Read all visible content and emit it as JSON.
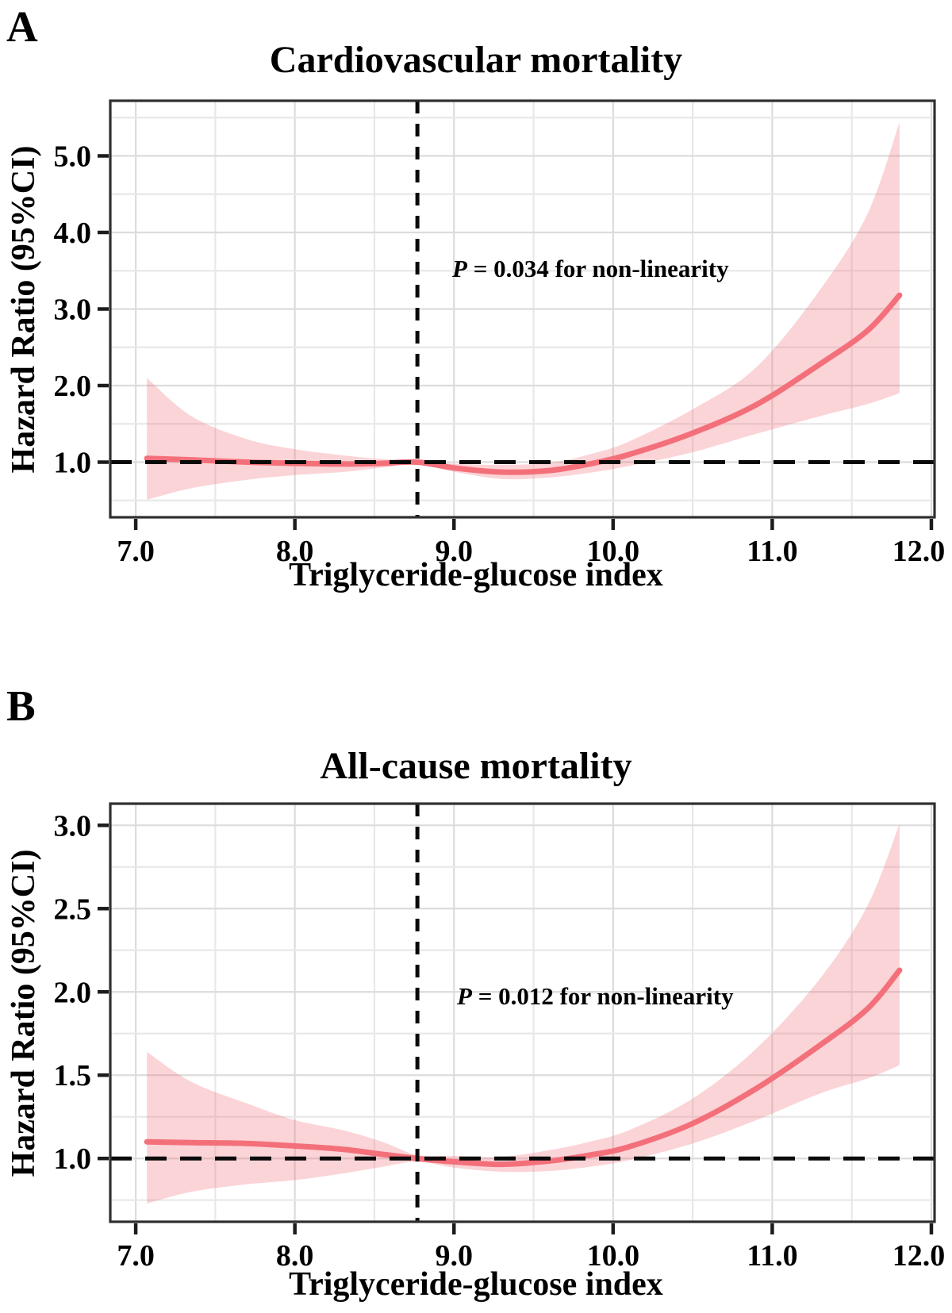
{
  "figure": {
    "background": "#ffffff",
    "line_color": "#f3707b",
    "ribbon_color": "rgba(243,112,123,0.30)",
    "reference_dash_color": "#0a0a0a",
    "grid_major_color": "#dcdcdc",
    "grid_minor_color": "#e8e8e8",
    "border_color": "#2f2f2f"
  },
  "panels": [
    {
      "letter": "A"
    },
    {
      "letter": "B"
    }
  ],
  "chart_data": [
    {
      "type": "line",
      "panel_letter": "A",
      "title": "Cardiovascular mortality",
      "xlabel": "Triglyceride-glucose index",
      "ylabel": "Hazard Ratio (95%CI)",
      "annotation": {
        "p": "P",
        "text": " = 0.034 for non-linearity"
      },
      "legend": "none",
      "grid": true,
      "xlim": [
        6.84,
        12.02
      ],
      "ylim": [
        0.28,
        5.72
      ],
      "xticks": [
        7.0,
        8.0,
        9.0,
        10.0,
        11.0,
        12.0
      ],
      "yticks": [
        1.0,
        2.0,
        3.0,
        4.0,
        5.0
      ],
      "x_grid_step": 0.5,
      "y_grid_step": 0.5,
      "reference_hr": 1.0,
      "reference_tyg": 8.77,
      "series": {
        "x": [
          7.07,
          7.35,
          7.7,
          8.0,
          8.3,
          8.55,
          8.77,
          9.0,
          9.3,
          9.6,
          9.85,
          10.1,
          10.5,
          10.9,
          11.3,
          11.6,
          11.8
        ],
        "hr": [
          1.05,
          1.03,
          1.0,
          0.985,
          0.975,
          0.985,
          1.0,
          0.925,
          0.87,
          0.89,
          0.975,
          1.1,
          1.38,
          1.75,
          2.28,
          2.72,
          3.18
        ],
        "lower": [
          0.51,
          0.66,
          0.77,
          0.83,
          0.87,
          0.93,
          0.975,
          0.875,
          0.78,
          0.8,
          0.86,
          0.95,
          1.13,
          1.37,
          1.6,
          1.76,
          1.9
        ],
        "upper": [
          2.1,
          1.6,
          1.3,
          1.17,
          1.09,
          1.04,
          1.025,
          0.98,
          0.965,
          0.99,
          1.1,
          1.27,
          1.69,
          2.24,
          3.25,
          4.25,
          5.44
        ]
      }
    },
    {
      "type": "line",
      "panel_letter": "B",
      "title": "All-cause mortality",
      "xlabel": "Triglyceride-glucose index",
      "ylabel": "Hazard Ratio (95%CI)",
      "annotation": {
        "p": "P",
        "text": " = 0.012 for non-linearity"
      },
      "legend": "none",
      "grid": true,
      "xlim": [
        6.84,
        12.02
      ],
      "ylim": [
        0.62,
        3.13
      ],
      "xticks": [
        7.0,
        8.0,
        9.0,
        10.0,
        11.0,
        12.0
      ],
      "yticks": [
        1.0,
        1.5,
        2.0,
        2.5,
        3.0
      ],
      "x_grid_step": 0.5,
      "y_grid_step": 0.25,
      "reference_hr": 1.0,
      "reference_tyg": 8.77,
      "series": {
        "x": [
          7.07,
          7.35,
          7.7,
          8.0,
          8.3,
          8.55,
          8.77,
          9.0,
          9.3,
          9.6,
          9.85,
          10.1,
          10.5,
          10.9,
          11.3,
          11.6,
          11.8
        ],
        "hr": [
          1.1,
          1.095,
          1.09,
          1.075,
          1.055,
          1.025,
          1.0,
          0.98,
          0.965,
          0.985,
          1.02,
          1.07,
          1.21,
          1.42,
          1.68,
          1.9,
          2.13
        ],
        "lower": [
          0.73,
          0.8,
          0.845,
          0.87,
          0.91,
          0.95,
          0.98,
          0.945,
          0.92,
          0.925,
          0.95,
          0.99,
          1.09,
          1.23,
          1.39,
          1.48,
          1.56
        ],
        "upper": [
          1.64,
          1.46,
          1.33,
          1.23,
          1.17,
          1.1,
          1.02,
          1.015,
          1.01,
          1.05,
          1.1,
          1.17,
          1.36,
          1.66,
          2.08,
          2.52,
          3.01
        ]
      }
    }
  ]
}
